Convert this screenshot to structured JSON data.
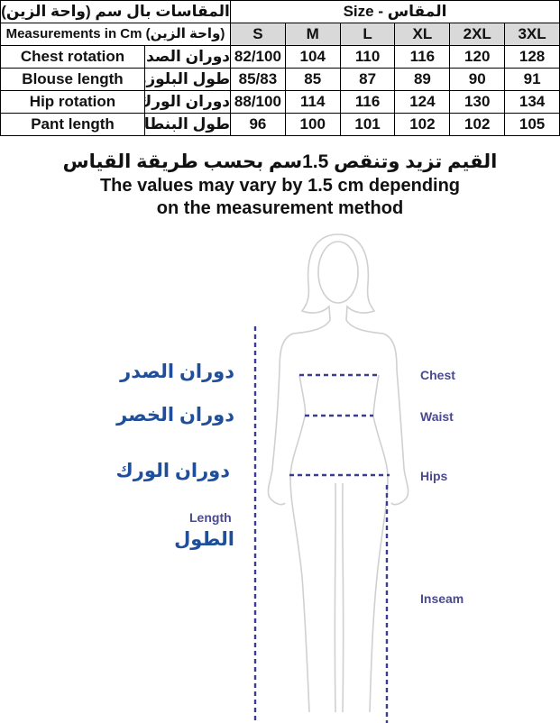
{
  "table": {
    "header_left_ar": "المقاسات بال سم (واحة الزين)",
    "header_right": "Size - المقاس",
    "subheader_left": "Measurements in Cm (واحة الزين)",
    "sizes": [
      "S",
      "M",
      "L",
      "XL",
      "2XL",
      "3XL"
    ],
    "rows": [
      {
        "en": "Chest rotation",
        "ar": "دوران الصدر",
        "values": [
          "82/100",
          "104",
          "110",
          "116",
          "120",
          "128"
        ]
      },
      {
        "en": "Blouse length",
        "ar": "طول البلوزة",
        "values": [
          "85/83",
          "85",
          "87",
          "89",
          "90",
          "91"
        ]
      },
      {
        "en": "Hip rotation",
        "ar": "دوران الورك",
        "values": [
          "88/100",
          "114",
          "116",
          "124",
          "130",
          "134"
        ]
      },
      {
        "en": "Pant length",
        "ar": "طول البنطال",
        "values": [
          "96",
          "100",
          "101",
          "102",
          "102",
          "105"
        ]
      }
    ]
  },
  "note": {
    "ar": "القيم تزيد وتنقص 1.5سم بحسب طريقة القياس",
    "en_line1": "The values may vary by 1.5 cm depending",
    "en_line2": "on the measurement method"
  },
  "figure": {
    "labels_ar": {
      "chest": "دوران الصدر",
      "waist": "دوران الخصر",
      "hip": "دوران الورك",
      "length": "الطول"
    },
    "labels_en": {
      "length": "Length",
      "chest": "Chest",
      "waist": "Waist",
      "hips": "Hips",
      "inseam": "Inseam"
    },
    "line_color": "#3b3b8f",
    "arabic_label_color": "#1f4e9a"
  }
}
